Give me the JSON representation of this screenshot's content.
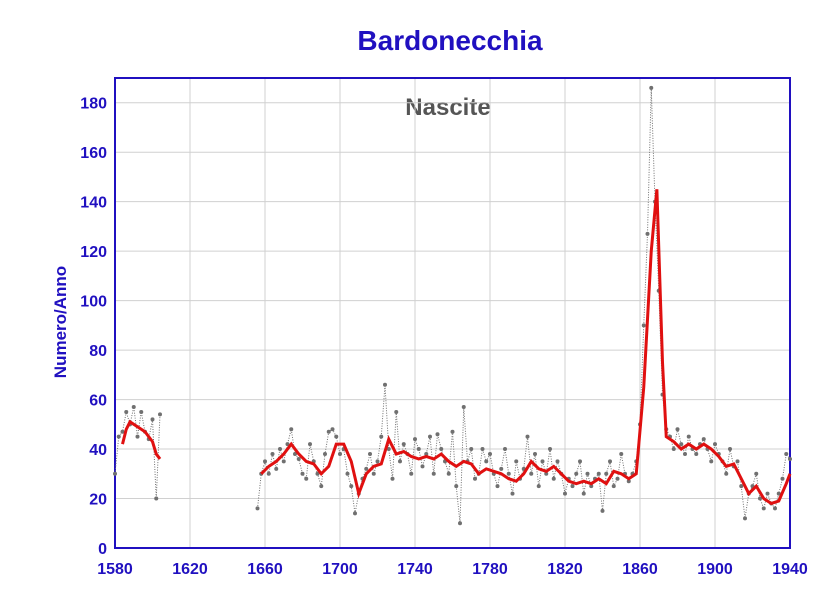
{
  "chart_data": {
    "type": "line",
    "title": "Bardonecchia",
    "annotation": "Nascite",
    "ylabel": "Numero/Anno",
    "xlim": [
      1580,
      1940
    ],
    "ylim": [
      0,
      190
    ],
    "xticks": [
      1580,
      1620,
      1660,
      1700,
      1740,
      1780,
      1820,
      1860,
      1900,
      1940
    ],
    "yticks": [
      0,
      20,
      40,
      60,
      80,
      100,
      120,
      140,
      160,
      180
    ],
    "grid": true,
    "series": [
      {
        "color": "#707070",
        "x": [
          1580,
          1582,
          1584,
          1586,
          1588,
          1590,
          1592,
          1594,
          1596,
          1598,
          1600,
          1602,
          1604,
          1630,
          1656,
          1658,
          1660,
          1662,
          1664,
          1666,
          1668,
          1670,
          1672,
          1674,
          1676,
          1678,
          1680,
          1682,
          1684,
          1686,
          1688,
          1690,
          1692,
          1694,
          1696,
          1698,
          1700,
          1702,
          1704,
          1706,
          1708,
          1710,
          1712,
          1714,
          1716,
          1718,
          1720,
          1722,
          1724,
          1726,
          1728,
          1730,
          1732,
          1734,
          1736,
          1738,
          1740,
          1742,
          1744,
          1746,
          1748,
          1750,
          1752,
          1754,
          1756,
          1758,
          1760,
          1762,
          1764,
          1766,
          1768,
          1770,
          1772,
          1774,
          1776,
          1778,
          1780,
          1782,
          1784,
          1786,
          1788,
          1790,
          1792,
          1794,
          1796,
          1798,
          1800,
          1802,
          1804,
          1806,
          1808,
          1810,
          1812,
          1814,
          1816,
          1818,
          1820,
          1822,
          1824,
          1826,
          1828,
          1830,
          1832,
          1834,
          1836,
          1838,
          1840,
          1842,
          1844,
          1846,
          1848,
          1850,
          1852,
          1854,
          1856,
          1858,
          1860,
          1862,
          1864,
          1866,
          1868,
          1870,
          1872,
          1874,
          1876,
          1878,
          1880,
          1882,
          1884,
          1886,
          1888,
          1890,
          1892,
          1894,
          1896,
          1898,
          1900,
          1902,
          1904,
          1906,
          1908,
          1910,
          1912,
          1914,
          1916,
          1918,
          1920,
          1922,
          1924,
          1926,
          1928,
          1930,
          1932,
          1934,
          1936,
          1938,
          1940
        ],
        "values": [
          30,
          45,
          47,
          55,
          50,
          57,
          45,
          55,
          47,
          44,
          52,
          20,
          54,
          null,
          16,
          30,
          35,
          30,
          38,
          32,
          40,
          35,
          42,
          48,
          38,
          36,
          30,
          28,
          42,
          35,
          30,
          25,
          38,
          47,
          48,
          45,
          38,
          40,
          30,
          25,
          14,
          22,
          28,
          32,
          38,
          30,
          35,
          45,
          66,
          40,
          28,
          55,
          35,
          42,
          38,
          30,
          44,
          40,
          33,
          38,
          45,
          30,
          46,
          40,
          35,
          30,
          47,
          25,
          10,
          57,
          35,
          40,
          28,
          30,
          40,
          35,
          38,
          30,
          25,
          32,
          40,
          30,
          22,
          35,
          28,
          32,
          45,
          30,
          38,
          25,
          35,
          30,
          40,
          28,
          35,
          30,
          22,
          28,
          25,
          30,
          35,
          22,
          30,
          25,
          28,
          30,
          15,
          30,
          35,
          25,
          28,
          38,
          30,
          27,
          30,
          35,
          50,
          90,
          127,
          186,
          140,
          104,
          62,
          48,
          45,
          40,
          48,
          42,
          38,
          45,
          40,
          38,
          42,
          44,
          40,
          35,
          42,
          38,
          35,
          30,
          40,
          33,
          35,
          25,
          12,
          22,
          25,
          30,
          20,
          16,
          22,
          18,
          16,
          22,
          28,
          38,
          36
        ]
      },
      {
        "color": "#e01010",
        "x": [
          1584,
          1586,
          1588,
          1592,
          1596,
          1600,
          1602,
          1604,
          1630,
          1658,
          1662,
          1666,
          1670,
          1674,
          1678,
          1682,
          1686,
          1690,
          1694,
          1698,
          1702,
          1706,
          1710,
          1714,
          1718,
          1722,
          1726,
          1730,
          1734,
          1738,
          1742,
          1746,
          1750,
          1754,
          1758,
          1762,
          1766,
          1770,
          1774,
          1778,
          1782,
          1786,
          1790,
          1794,
          1798,
          1802,
          1806,
          1810,
          1814,
          1818,
          1822,
          1826,
          1830,
          1834,
          1838,
          1842,
          1846,
          1850,
          1854,
          1858,
          1862,
          1866,
          1869,
          1872,
          1874,
          1878,
          1882,
          1886,
          1890,
          1894,
          1898,
          1902,
          1906,
          1910,
          1914,
          1918,
          1922,
          1926,
          1930,
          1934,
          1938,
          1940
        ],
        "values": [
          42,
          48,
          51,
          49,
          47,
          43,
          38,
          36,
          null,
          30,
          33,
          35,
          38,
          42,
          38,
          35,
          34,
          30,
          33,
          42,
          42,
          35,
          22,
          30,
          33,
          34,
          44,
          38,
          39,
          37,
          36,
          37,
          36,
          38,
          35,
          33,
          35,
          34,
          30,
          32,
          31,
          30,
          28,
          27,
          30,
          35,
          32,
          31,
          33,
          30,
          27,
          26,
          27,
          26,
          28,
          26,
          31,
          30,
          28,
          30,
          65,
          120,
          145,
          75,
          45,
          43,
          40,
          42,
          40,
          42,
          40,
          37,
          33,
          34,
          28,
          22,
          25,
          20,
          18,
          19,
          26,
          30
        ]
      }
    ]
  }
}
